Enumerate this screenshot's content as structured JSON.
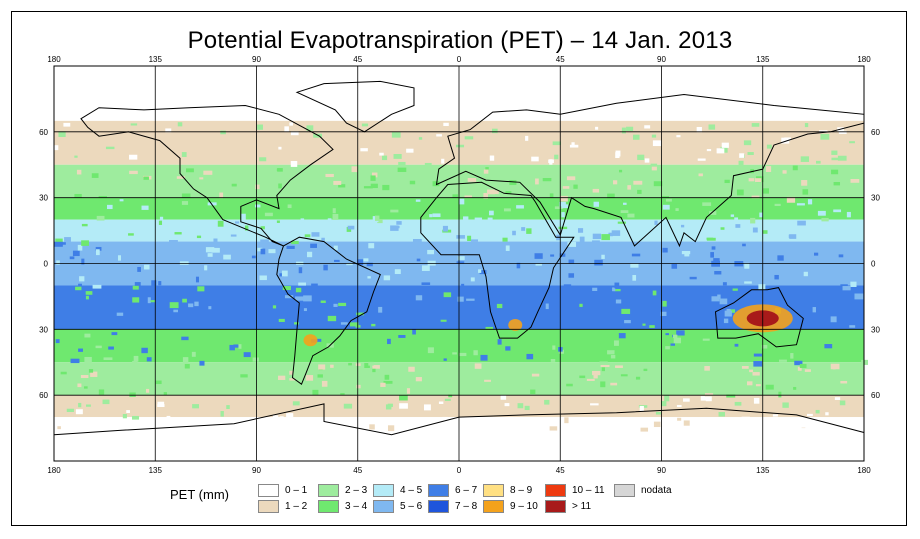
{
  "title": "Potential Evapotranspiration (PET) – 14 Jan. 2013",
  "axes": {
    "lon_ticks": [
      "180",
      "135",
      "90",
      "45",
      "0",
      "45",
      "90",
      "135",
      "180"
    ],
    "lat_ticks": [
      "60",
      "30",
      "0",
      "30",
      "60"
    ]
  },
  "legend": {
    "title": "PET (mm)",
    "items": [
      {
        "label": "0 – 1",
        "color": "#ffffff"
      },
      {
        "label": "1 – 2",
        "color": "#ecd9bd"
      },
      {
        "label": "2 – 3",
        "color": "#9eec9e"
      },
      {
        "label": "3 – 4",
        "color": "#6fe86f"
      },
      {
        "label": "4 – 5",
        "color": "#b4ebf7"
      },
      {
        "label": "5 – 6",
        "color": "#7fb8f0"
      },
      {
        "label": "6 – 7",
        "color": "#3f7ee6"
      },
      {
        "label": "7 – 8",
        "color": "#1f55dc"
      },
      {
        "label": "8 – 9",
        "color": "#ffe083"
      },
      {
        "label": "9 – 10",
        "color": "#f4a21c"
      },
      {
        "label": "10 – 11",
        "color": "#ee3a10"
      },
      {
        "label": "> 11",
        "color": "#a81a1a"
      },
      {
        "label": "nodata",
        "color": "#d6d6d6"
      }
    ]
  },
  "chart_data": {
    "type": "heatmap",
    "title": "Potential Evapotranspiration (PET) – 14 Jan. 2013",
    "xlim": [
      -180,
      180
    ],
    "ylim": [
      -90,
      90
    ],
    "zones": [
      {
        "lat_range": [
          65,
          90
        ],
        "class": "0 – 1"
      },
      {
        "lat_range": [
          45,
          65
        ],
        "class": "1 – 2"
      },
      {
        "lat_range": [
          30,
          45
        ],
        "class": "2 – 3"
      },
      {
        "lat_range": [
          20,
          30
        ],
        "class": "3 – 4"
      },
      {
        "lat_range": [
          10,
          20
        ],
        "class": "4 – 5"
      },
      {
        "lat_range": [
          -10,
          10
        ],
        "class": "5 – 6"
      },
      {
        "lat_range": [
          -30,
          -10
        ],
        "class": "6 – 7"
      },
      {
        "lat_range": [
          -45,
          -30
        ],
        "class": "3 – 4"
      },
      {
        "lat_range": [
          -60,
          -45
        ],
        "class": "2 – 3"
      },
      {
        "lat_range": [
          -70,
          -60
        ],
        "class": "1 – 2"
      },
      {
        "lat_range": [
          -90,
          -70
        ],
        "class": "0 – 1"
      }
    ],
    "hotspots": [
      {
        "region": "Australia",
        "lon": 135,
        "lat": -25,
        "class": "> 11"
      },
      {
        "region": "Southern Africa",
        "lon": 25,
        "lat": -28,
        "class": "9 – 10"
      },
      {
        "region": "Argentina",
        "lon": -66,
        "lat": -35,
        "class": "9 – 10"
      }
    ]
  }
}
